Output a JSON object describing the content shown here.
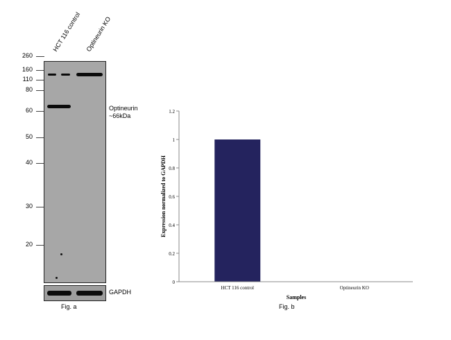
{
  "blot": {
    "lanes": [
      "HCT 116 control",
      "Optineurin KO"
    ],
    "mw_markers": [
      "260",
      "160",
      "110",
      "80",
      "60",
      "50",
      "40",
      "30",
      "20"
    ],
    "target_label": "Optineurin\n~66kDa",
    "loading_control_label": "GAPDH",
    "caption": "Fig. a"
  },
  "chart_caption": "Fig. b",
  "chart_data": {
    "type": "bar",
    "categories": [
      "HCT 116 control",
      "Optineurin KO"
    ],
    "values": [
      1,
      0
    ],
    "xlabel": "Samples",
    "ylabel": "Expression normalized to GAPDH",
    "ylim": [
      0,
      1.2
    ],
    "yticks": [
      "0",
      "0.2",
      "0.4",
      "0.6",
      "0.8",
      "1",
      "1.2"
    ],
    "bar_color": "#24235e",
    "grid": false,
    "legend": "none"
  }
}
